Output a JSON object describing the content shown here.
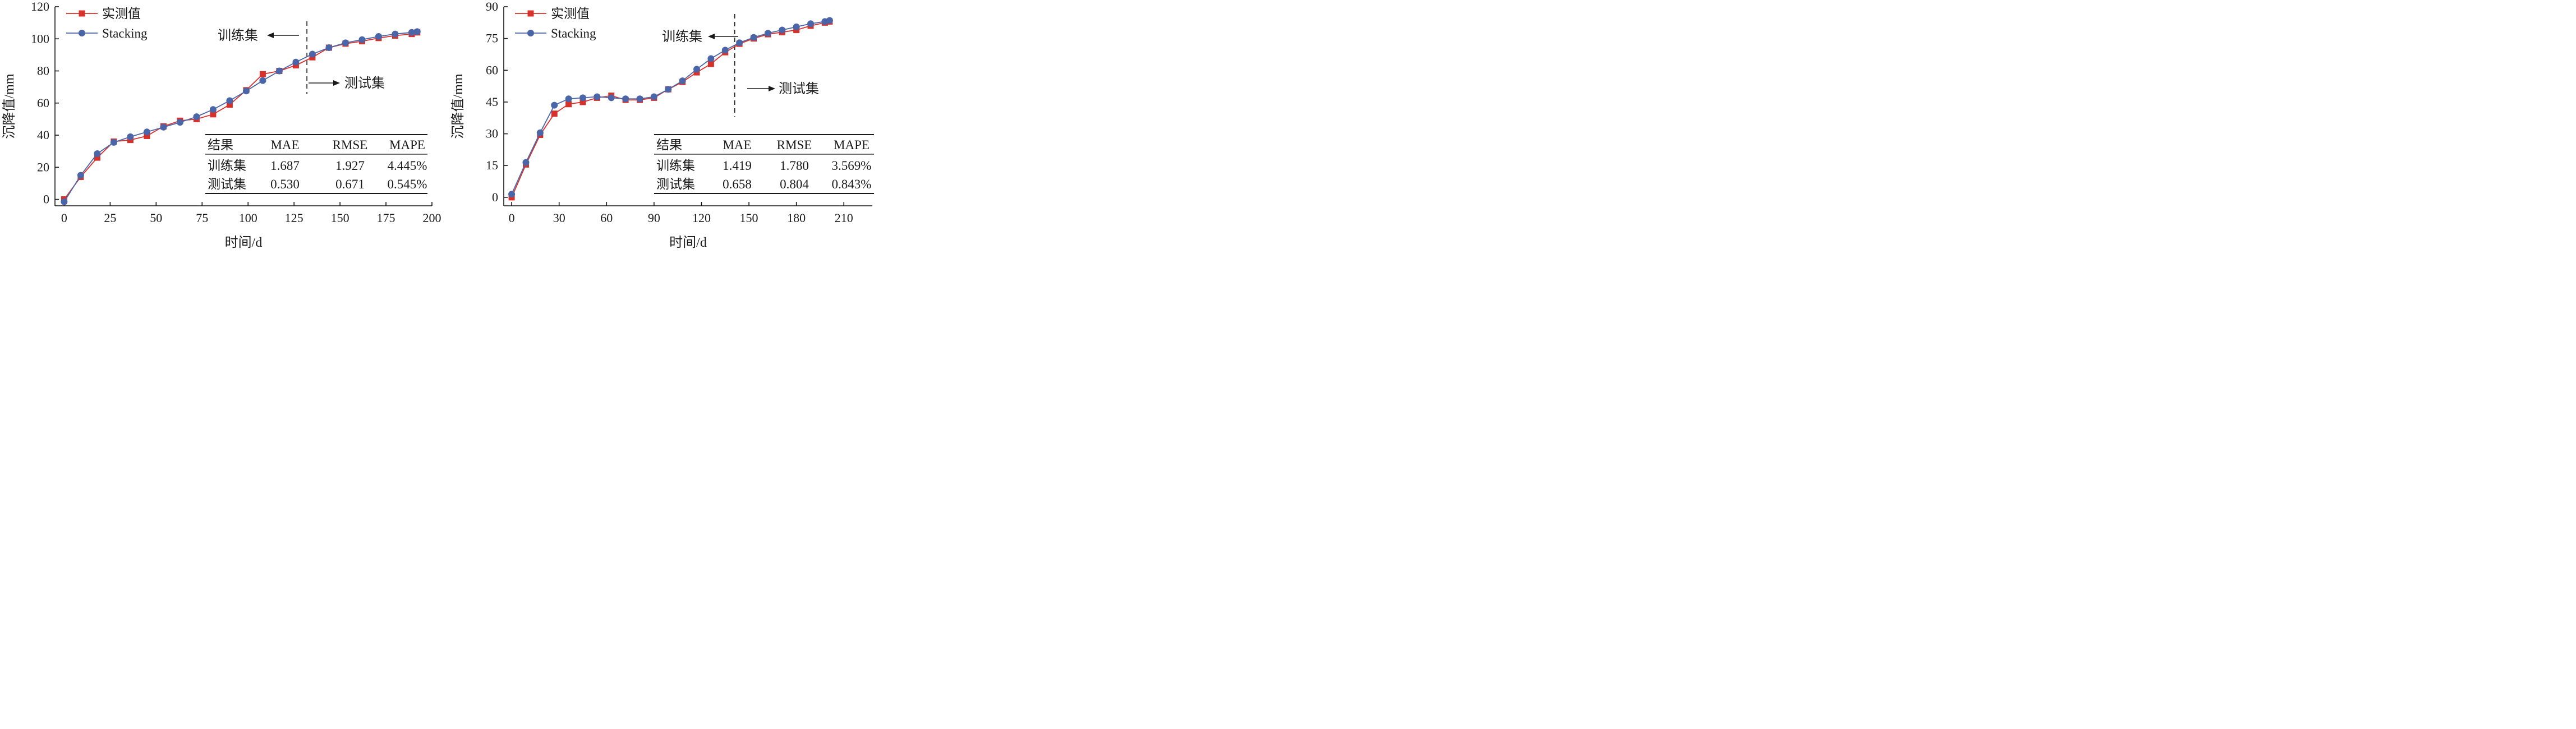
{
  "colors": {
    "measured": "#d8312c",
    "stacking": "#4a65a8",
    "axis": "#1a1a1a"
  },
  "chart_data": [
    {
      "type": "line",
      "xlabel": "时间/d",
      "ylabel": "沉降值/mm",
      "xlim": [
        -5,
        200
      ],
      "ylim": [
        -4,
        120
      ],
      "xticks": [
        "0",
        "25",
        "50",
        "75",
        "100",
        "125",
        "150",
        "175",
        "200"
      ],
      "yticks": [
        "0",
        "20",
        "40",
        "60",
        "80",
        "100",
        "120"
      ],
      "legend_position": "top-left",
      "split_x": 132,
      "annotations": {
        "train_label": "训练集",
        "test_label": "测试集"
      },
      "series": [
        {
          "name": "实测值",
          "marker": "square",
          "x": [
            0,
            9,
            18,
            27,
            36,
            45,
            54,
            63,
            72,
            81,
            90,
            99,
            108,
            117,
            126,
            135,
            144,
            153,
            162,
            171,
            180,
            189,
            192
          ],
          "y": [
            0,
            14,
            26,
            36,
            37,
            39.5,
            45.5,
            49,
            50,
            53,
            59,
            68,
            78,
            80,
            83.5,
            88.5,
            94.5,
            97,
            98.5,
            100.5,
            102,
            103,
            104
          ]
        },
        {
          "name": "Stacking",
          "marker": "circle",
          "x": [
            0,
            9,
            18,
            27,
            36,
            45,
            54,
            63,
            72,
            81,
            90,
            99,
            108,
            117,
            126,
            135,
            144,
            153,
            162,
            171,
            180,
            189,
            192
          ],
          "y": [
            -1.5,
            15,
            28.5,
            35.5,
            39,
            42,
            45,
            48,
            51.5,
            56,
            61.5,
            67.5,
            74,
            80,
            85.5,
            90.5,
            94.5,
            97.5,
            99.5,
            101.5,
            103,
            104,
            104.5
          ]
        }
      ],
      "table": {
        "headers": [
          "结果",
          "MAE",
          "RMSE",
          "MAPE"
        ],
        "rows": [
          [
            "训练集",
            "1.687",
            "1.927",
            "4.445%"
          ],
          [
            "测试集",
            "0.530",
            "0.671",
            "0.545%"
          ]
        ]
      }
    },
    {
      "type": "line",
      "xlabel": "时间/d",
      "ylabel": "沉降值/mm",
      "xlim": [
        -5,
        228
      ],
      "ylim": [
        -4,
        90
      ],
      "xticks": [
        "0",
        "30",
        "60",
        "90",
        "120",
        "150",
        "180",
        "210"
      ],
      "yticks": [
        "0",
        "15",
        "30",
        "45",
        "60",
        "75",
        "90"
      ],
      "legend_position": "top-left",
      "split_x": 141,
      "annotations": {
        "train_label": "训练集",
        "test_label": "测试集"
      },
      "series": [
        {
          "name": "实测值",
          "marker": "square",
          "x": [
            0,
            9,
            18,
            27,
            36,
            45,
            54,
            63,
            72,
            81,
            90,
            99,
            108,
            117,
            126,
            135,
            144,
            153,
            162,
            171,
            180,
            189,
            198,
            201
          ],
          "y": [
            0,
            15.5,
            29.5,
            39.5,
            44,
            45,
            47,
            48,
            46,
            46,
            47,
            51,
            54.5,
            59,
            63,
            68.5,
            72.5,
            75,
            77,
            78,
            79,
            81,
            82.5,
            83
          ]
        },
        {
          "name": "Stacking",
          "marker": "circle",
          "x": [
            0,
            9,
            18,
            27,
            36,
            45,
            54,
            63,
            72,
            81,
            90,
            99,
            108,
            117,
            126,
            135,
            144,
            153,
            162,
            171,
            180,
            189,
            198,
            201
          ],
          "y": [
            1.5,
            16.5,
            30.5,
            43.5,
            46.5,
            47,
            47.5,
            47,
            46.5,
            46.5,
            47.5,
            51,
            55,
            60.5,
            65.5,
            69.5,
            73,
            75.5,
            77.5,
            79,
            80.5,
            82,
            83,
            83.5
          ]
        }
      ],
      "table": {
        "headers": [
          "结果",
          "MAE",
          "RMSE",
          "MAPE"
        ],
        "rows": [
          [
            "训练集",
            "1.419",
            "1.780",
            "3.569%"
          ],
          [
            "测试集",
            "0.658",
            "0.804",
            "0.843%"
          ]
        ]
      }
    }
  ]
}
